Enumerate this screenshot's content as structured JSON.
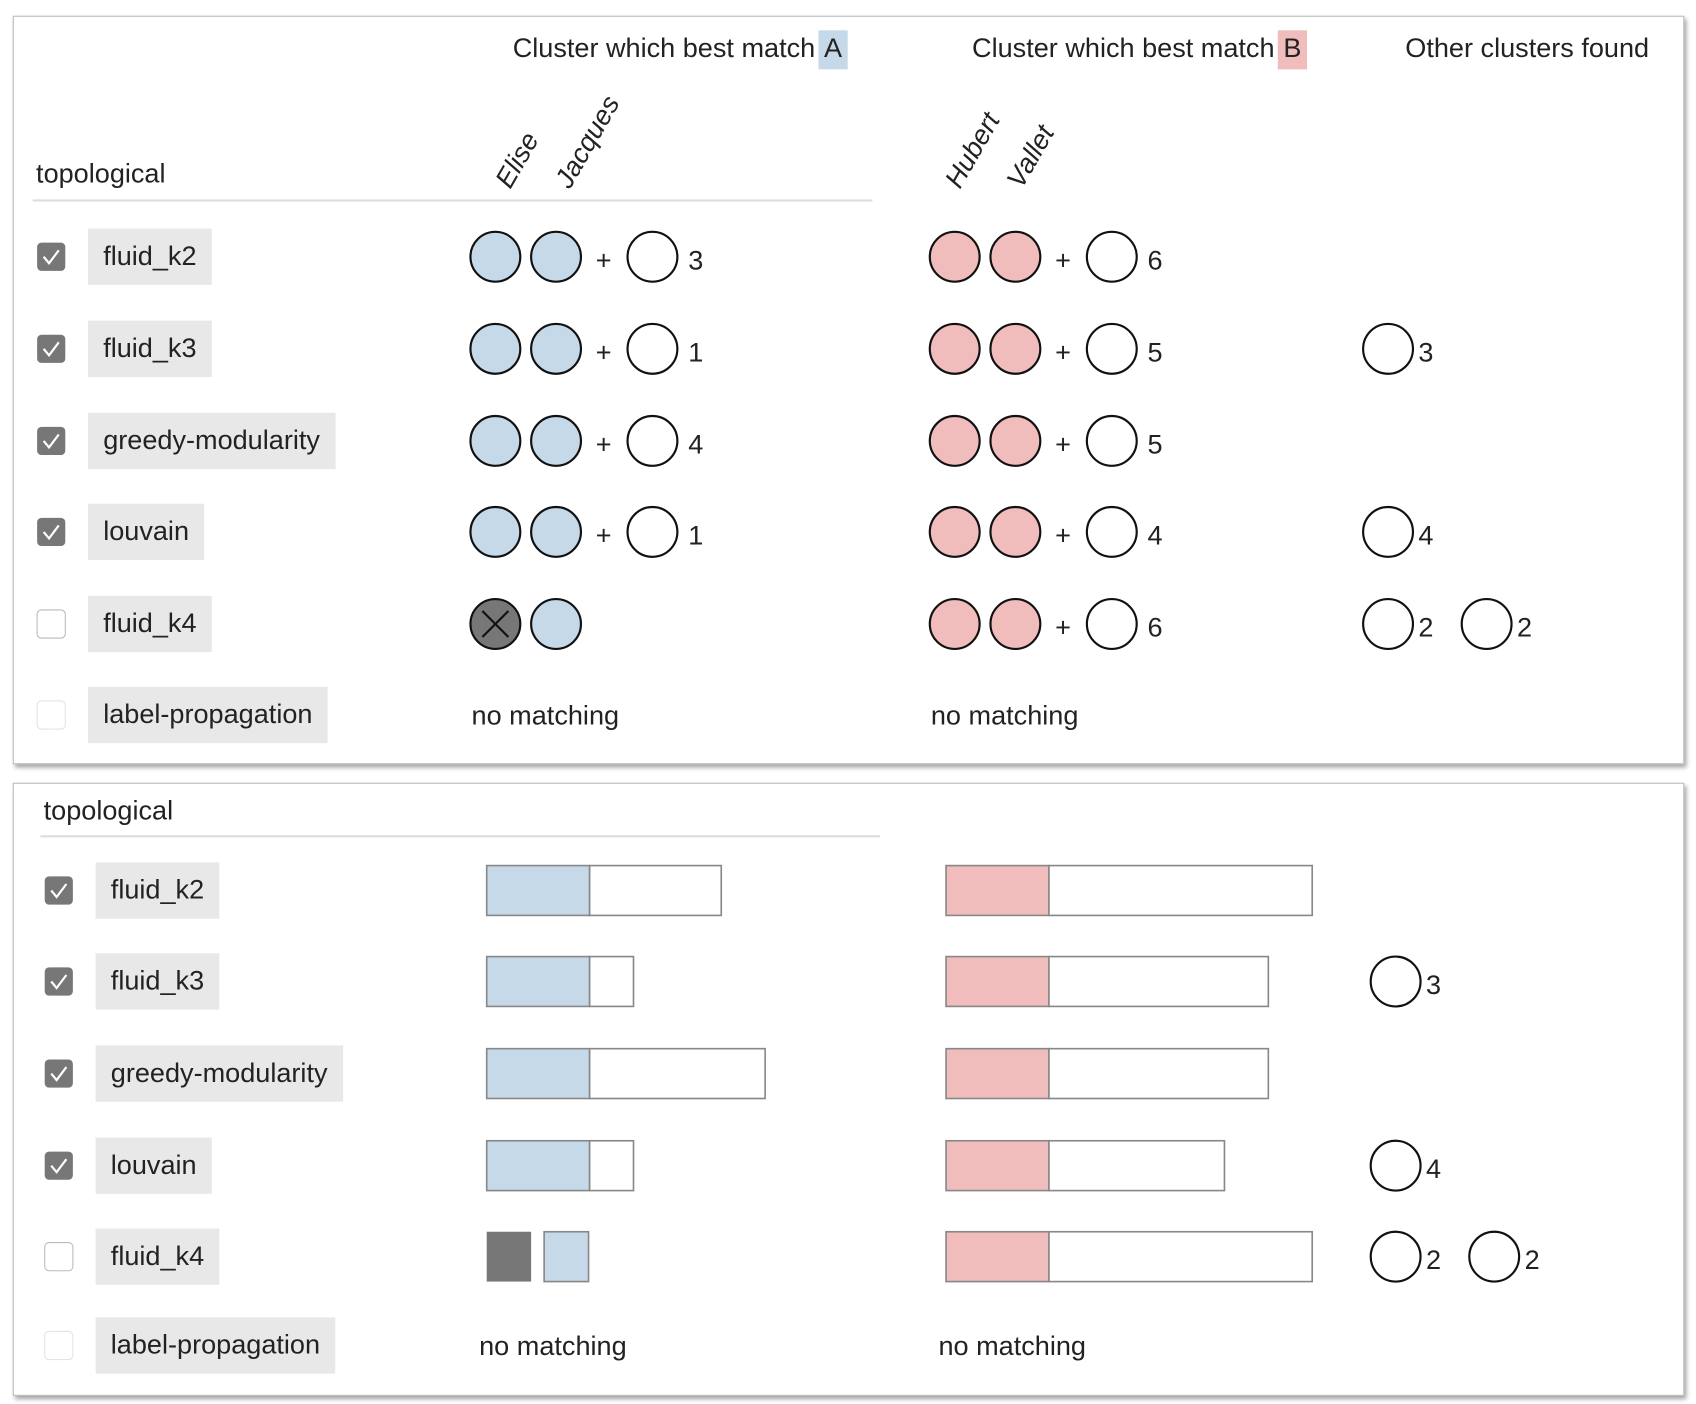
{
  "columns": [
    {
      "text": "Cluster which best match",
      "badge": "A"
    },
    {
      "text": "Cluster which best match",
      "badge": "B"
    },
    {
      "text": "Other clusters found"
    }
  ],
  "a_members": [
    "Elise",
    "Jacques"
  ],
  "b_members": [
    "Hubert",
    "Vallet"
  ],
  "group": "topological",
  "colors": {
    "a": "#c6d9e8",
    "b": "#f0bcbc",
    "missing": "#777777"
  },
  "rows": [
    {
      "checked": true,
      "enabled": true,
      "method": "fluid_k2",
      "a": {
        "found": [
          true,
          true
        ],
        "extra": 3
      },
      "b": {
        "found": [
          true,
          true
        ],
        "extra": 6
      },
      "others": []
    },
    {
      "checked": true,
      "enabled": true,
      "method": "fluid_k3",
      "a": {
        "found": [
          true,
          true
        ],
        "extra": 1
      },
      "b": {
        "found": [
          true,
          true
        ],
        "extra": 5
      },
      "others": [
        3
      ]
    },
    {
      "checked": true,
      "enabled": true,
      "method": "greedy-modularity",
      "a": {
        "found": [
          true,
          true
        ],
        "extra": 4
      },
      "b": {
        "found": [
          true,
          true
        ],
        "extra": 5
      },
      "others": []
    },
    {
      "checked": true,
      "enabled": true,
      "method": "louvain",
      "a": {
        "found": [
          true,
          true
        ],
        "extra": 1
      },
      "b": {
        "found": [
          true,
          true
        ],
        "extra": 4
      },
      "others": [
        4
      ]
    },
    {
      "checked": false,
      "enabled": true,
      "method": "fluid_k4",
      "a": {
        "found": [
          false,
          true
        ]
      },
      "b": {
        "found": [
          true,
          true
        ],
        "extra": 6
      },
      "others": [
        2,
        2
      ]
    },
    {
      "checked": false,
      "enabled": false,
      "method": "label-propagation",
      "a": {
        "text": "no matching"
      },
      "b": {
        "text": "no matching"
      },
      "others": []
    }
  ]
}
